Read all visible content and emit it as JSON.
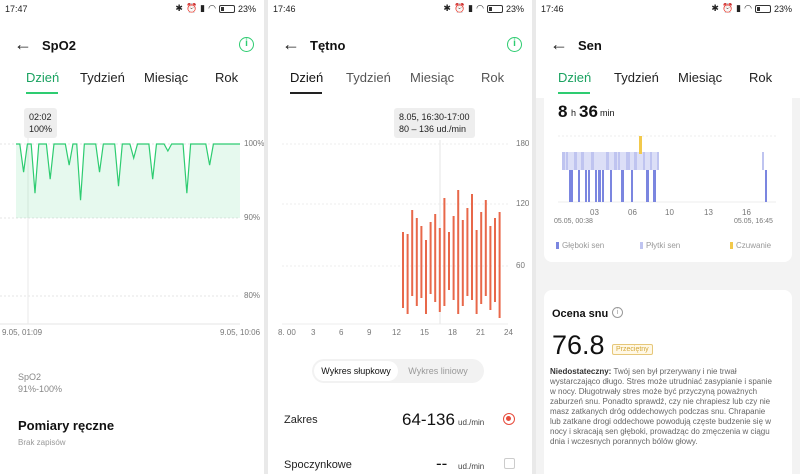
{
  "colors": {
    "green": "#2ecc71",
    "red": "#e8684a",
    "deep": "#7b86e0",
    "light": "#bfc4f0",
    "awake": "#f2c94c"
  },
  "panel1": {
    "status": {
      "time": "17:47",
      "battery": "23%"
    },
    "title": "SpO2",
    "tabs": [
      "Dzień",
      "Tydzień",
      "Miesiąc",
      "Rok"
    ],
    "tooltip": {
      "time": "02:02",
      "value": "100%"
    },
    "y_labels": [
      "100%",
      "90%",
      "80%"
    ],
    "x_start": "9.05, 01:09",
    "x_end": "9.05, 10:06",
    "summary_label": "SpO2",
    "summary_value": "91%-100%",
    "manual_title": "Pomiary ręczne",
    "manual_sub": "Brak zapisów"
  },
  "panel2": {
    "status": {
      "time": "17:46",
      "battery": "23%"
    },
    "title": "Tętno",
    "tabs": [
      "Dzień",
      "Tydzień",
      "Miesiąc",
      "Rok"
    ],
    "tooltip": {
      "time": "8.05, 16:30-17:00",
      "value": "80 – 136 ud./min"
    },
    "y_labels": [
      "180",
      "120",
      "60"
    ],
    "x_labels": [
      "8. 00",
      "3",
      "6",
      "9",
      "12",
      "15",
      "18",
      "21",
      "24"
    ],
    "seg_on": "Wykres słupkowy",
    "seg_off": "Wykres liniowy",
    "range_label": "Zakres",
    "range_value": "64-136",
    "range_unit": "ud./min",
    "rest_label": "Spoczynkowe",
    "rest_value": "--",
    "rest_unit": "ud./min"
  },
  "panel3": {
    "status": {
      "time": "17:46",
      "battery": "23%"
    },
    "title": "Sen",
    "tabs": [
      "Dzień",
      "Tydzień",
      "Miesiąc",
      "Rok"
    ],
    "dur_h": "8",
    "dur_h_unit": "h",
    "dur_m": "36",
    "dur_m_unit": "min",
    "x_labels": [
      "03",
      "06",
      "10",
      "13",
      "16"
    ],
    "x_start": "05.05, 00:38",
    "x_end": "05.05, 16:45",
    "legend": [
      "Głęboki sen",
      "Płytki sen",
      "Czuwanie"
    ],
    "score_title": "Ocena snu",
    "score_value": "76.8",
    "score_badge": "Przeciętny",
    "desc_bold": "Niedostateczny:",
    "desc_text": " Twój sen był przerywany i nie trwał wystarczająco długo. Stres może utrudniać zasypianie i spanie w nocy. Długotrwały stres może być przyczyną poważnych zaburzeń snu. Ponadto sprawdź, czy nie chrapiesz lub czy nie masz zatkanych dróg oddechowych podczas snu. Chrapanie lub zatkane drogi oddechowe powodują częste budzenie się w nocy i skracają sen głęboki, prowadząc do zmęczenia w ciągu dnia i wczesnych porannych bólów głowy."
  }
}
